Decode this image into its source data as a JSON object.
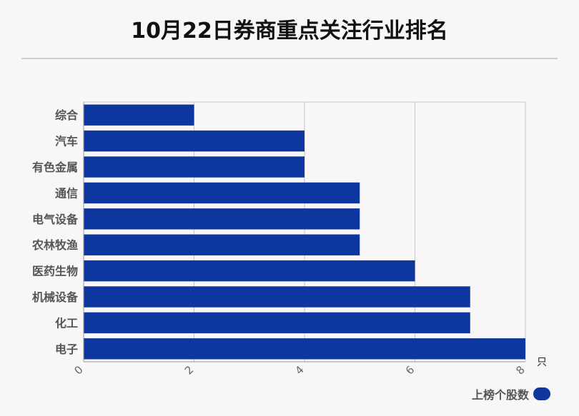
{
  "colors": {
    "bar": "#0d369e",
    "grid": "#c8c8c8"
  },
  "chart_data": {
    "type": "bar",
    "orientation": "horizontal",
    "title": "10月22日券商重点关注行业排名",
    "categories": [
      "综合",
      "汽车",
      "有色金属",
      "通信",
      "电气设备",
      "农林牧渔",
      "医药生物",
      "机械设备",
      "化工",
      "电子"
    ],
    "series": [
      {
        "name": "上榜个股数",
        "values": [
          2,
          4,
          4,
          5,
          5,
          5,
          6,
          7,
          7,
          8
        ]
      }
    ],
    "xlim": [
      0,
      8
    ],
    "xticks": [
      "0",
      "2",
      "4",
      "6",
      "8"
    ],
    "x_unit": "只",
    "grid": true,
    "legend_position": "bottom-right"
  }
}
